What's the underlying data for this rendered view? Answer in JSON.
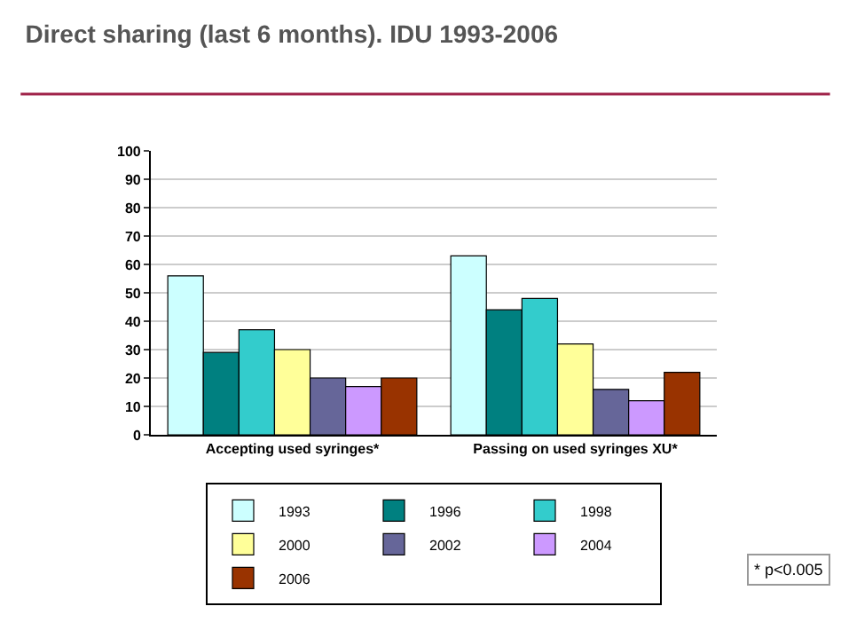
{
  "chart_data": {
    "type": "bar",
    "title": "Direct sharing (last 6 months). IDU 1993-2006",
    "categories": [
      "Accepting used syringes*",
      "Passing on used syringes XU*"
    ],
    "series": [
      {
        "name": "1993",
        "color": "#ccffff",
        "values": [
          56,
          63
        ]
      },
      {
        "name": "1996",
        "color": "#008080",
        "values": [
          29,
          44
        ]
      },
      {
        "name": "1998",
        "color": "#33cccc",
        "values": [
          37,
          48
        ]
      },
      {
        "name": "2000",
        "color": "#ffff99",
        "values": [
          30,
          32
        ]
      },
      {
        "name": "2002",
        "color": "#666699",
        "values": [
          20,
          16
        ]
      },
      {
        "name": "2004",
        "color": "#cc99ff",
        "values": [
          17,
          12
        ]
      },
      {
        "name": "2006",
        "color": "#993300",
        "values": [
          20,
          22
        ]
      }
    ],
    "ylim": [
      0,
      100
    ],
    "yticks": [
      0,
      10,
      20,
      30,
      40,
      50,
      60,
      70,
      80,
      90,
      100
    ],
    "grid": "y",
    "legend": "bottom",
    "annotations": [
      "* p<0.005"
    ]
  }
}
